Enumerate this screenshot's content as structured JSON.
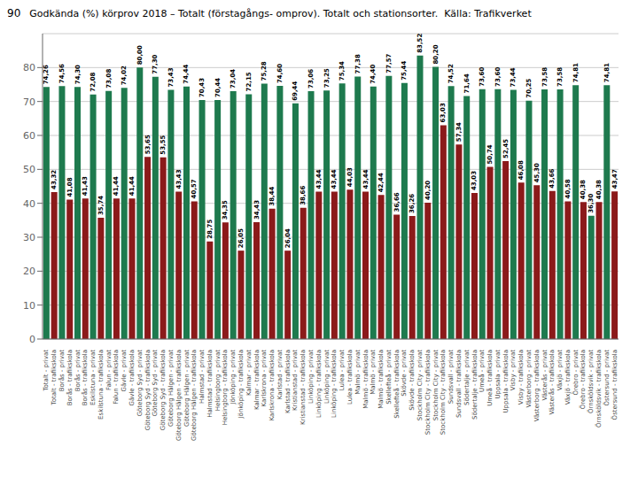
{
  "chart_data": {
    "type": "bar",
    "title": "Godkända (%) körprov 2018 – Totalt (förstagångs- omprov). Totalt och stationsorter.  Källa: Trafikverket",
    "annotations": [
      "90"
    ],
    "categories": [
      "Totalt - privat",
      "Totalt - trafikskola",
      "Borås - privat",
      "Borås - trafikskola",
      "Borås - privat",
      "Borås - trafikskola",
      "Eskilstuna - privat",
      "Eskilstuna - trafikskola",
      "Falun - privat",
      "Falun - trafikskola",
      "Gävle - privat",
      "Gävle - trafikskola",
      "Göteborg Syd - privat",
      "Göteborg Syd - trafikskola",
      "Göteborg Syd - privat",
      "Göteborg Syd - trafikskola",
      "Göteborg Hälgen - privat",
      "Göteborg Hälgen - trafikskola",
      "Göteborg Hälgen - privat",
      "Göteborg Hälgen - trafikskola",
      "Halmstad - privat",
      "Halmstad - trafikskola",
      "Helsingborg - privat",
      "Helsingborg - trafikskola",
      "Jönköping - privat",
      "Jönköping - trafikskola",
      "Kalmar - privat",
      "Kalmar - trafikskola",
      "Karlskrona - privat",
      "Karlskrona - trafikskola",
      "Karlstad - privat",
      "Karlstad - trafikskola",
      "Kristianstad - privat",
      "Kristianstad - trafikskola",
      "Linköping - privat",
      "Linköping - trafikskola",
      "Linköping - privat",
      "Linköping - trafikskola",
      "Lulea - privat",
      "Lulea - trafikskola",
      "Malmö - privat",
      "Malmö - trafikskola",
      "Malmö - privat",
      "Malmö - trafikskola",
      "Skellefteå - privat",
      "Skellefteå - trafikskola",
      "Skövde - privat",
      "Skövde - trafikskola",
      "Stockholm City - privat",
      "Stockholm City - trafikskola",
      "Stockholm City - privat",
      "Stockholm City - trafikskola",
      "Sundsvall - privat",
      "Sundsvall - trafikskola",
      "Södertalje - privat",
      "Södertalje - trafikskola",
      "Umeå - privat",
      "Umeå - trafikskola",
      "Uppsala - privat",
      "Uppsala - trafikskola",
      "Visby - privat",
      "Visby - trafikskola",
      "Västerborg - privat",
      "Västerborg - trafikskola",
      "Västerås - privat",
      "Västerås - trafikskola",
      "Växjö - privat",
      "Växjö - trafikskola",
      "Örebro - privat",
      "Örebro - trafikskola",
      "Örnsköldsvik - privat",
      "Örnsköldsvik - trafikskola",
      "Östersund - privat",
      "Östersund - trafikskola"
    ],
    "values": [
      74.26,
      43.32,
      74.56,
      41.08,
      74.3,
      41.43,
      72.08,
      35.74,
      73.08,
      41.44,
      74.02,
      41.44,
      80.0,
      53.65,
      77.3,
      53.55,
      73.43,
      43.43,
      74.44,
      40.57,
      70.43,
      28.75,
      70.44,
      34.35,
      73.04,
      26.05,
      72.15,
      34.43,
      75.28,
      38.44,
      74.6,
      26.04,
      69.44,
      38.66,
      73.06,
      43.44,
      73.25,
      43.44,
      75.34,
      44.03,
      77.38,
      43.44,
      74.4,
      42.44,
      77.57,
      36.66,
      75.44,
      36.26,
      83.52,
      40.2,
      80.2,
      63.03,
      74.52,
      57.34,
      71.64,
      43.03,
      73.6,
      50.74,
      73.6,
      52.45,
      73.44,
      46.08,
      70.25,
      45.3,
      73.58,
      43.66,
      73.58,
      40.58,
      74.81,
      40.38,
      36.3,
      40.38,
      74.81,
      43.47
    ],
    "value_labels": [
      "74,26",
      "43,32",
      "74,56",
      "41,08",
      "74,30",
      "41,43",
      "72,08",
      "35,74",
      "73,08",
      "41,44",
      "74,02",
      "41,44",
      "80,00",
      "53,65",
      "77,30",
      "53,55",
      "73,43",
      "43,43",
      "74,44",
      "40,57",
      "70,43",
      "28,75",
      "70,44",
      "34,35",
      "73,04",
      "26,05",
      "72,15",
      "34,43",
      "75,28",
      "38,44",
      "74,60",
      "26,04",
      "69,44",
      "38,66",
      "73,06",
      "43,44",
      "73,25",
      "43,44",
      "75,34",
      "44,03",
      "77,38",
      "43,44",
      "74,40",
      "42,44",
      "77,57",
      "36,66",
      "75,44",
      "36,26",
      "83,52",
      "40,20",
      "80,20",
      "63,03",
      "74,52",
      "57,34",
      "71,64",
      "43,03",
      "73,60",
      "50,74",
      "73,60",
      "52,45",
      "73,44",
      "46,08",
      "70,25",
      "45,30",
      "73,58",
      "43,66",
      "73,58",
      "40,58",
      "74,81",
      "40,38",
      "36,30",
      "40,38",
      "74,81",
      "43,47"
    ],
    "colors": [
      "#1e7a4e",
      "#8b1a1a",
      "#1e7a4e",
      "#8b1a1a",
      "#1e7a4e",
      "#8b1a1a",
      "#1e7a4e",
      "#8b1a1a",
      "#1e7a4e",
      "#8b1a1a",
      "#1e7a4e",
      "#8b1a1a",
      "#1e7a4e",
      "#8b1a1a",
      "#1e7a4e",
      "#8b1a1a",
      "#1e7a4e",
      "#8b1a1a",
      "#1e7a4e",
      "#8b1a1a",
      "#1e7a4e",
      "#8b1a1a",
      "#1e7a4e",
      "#8b1a1a",
      "#1e7a4e",
      "#8b1a1a",
      "#1e7a4e",
      "#8b1a1a",
      "#1e7a4e",
      "#8b1a1a",
      "#1e7a4e",
      "#8b1a1a",
      "#1e7a4e",
      "#8b1a1a",
      "#1e7a4e",
      "#8b1a1a",
      "#1e7a4e",
      "#8b1a1a",
      "#1e7a4e",
      "#8b1a1a",
      "#1e7a4e",
      "#8b1a1a",
      "#1e7a4e",
      "#8b1a1a",
      "#1e7a4e",
      "#8b1a1a",
      "#1e7a4e",
      "#8b1a1a",
      "#1e7a4e",
      "#8b1a1a",
      "#1e7a4e",
      "#8b1a1a",
      "#1e7a4e",
      "#8b1a1a",
      "#1e7a4e",
      "#8b1a1a",
      "#1e7a4e",
      "#8b1a1a",
      "#1e7a4e",
      "#8b1a1a",
      "#1e7a4e",
      "#8b1a1a",
      "#1e7a4e",
      "#8b1a1a",
      "#1e7a4e",
      "#8b1a1a",
      "#1e7a4e",
      "#8b1a1a",
      "#1e7a4e",
      "#8b1a1a",
      "#1e7a4e",
      "#8b1a1a",
      "#1e7a4e",
      "#8b1a1a"
    ],
    "ylim": [
      0,
      90
    ],
    "yticks": [
      0,
      10,
      20,
      30,
      40,
      50,
      60,
      70,
      80
    ],
    "grid": true,
    "data_labels": true
  }
}
